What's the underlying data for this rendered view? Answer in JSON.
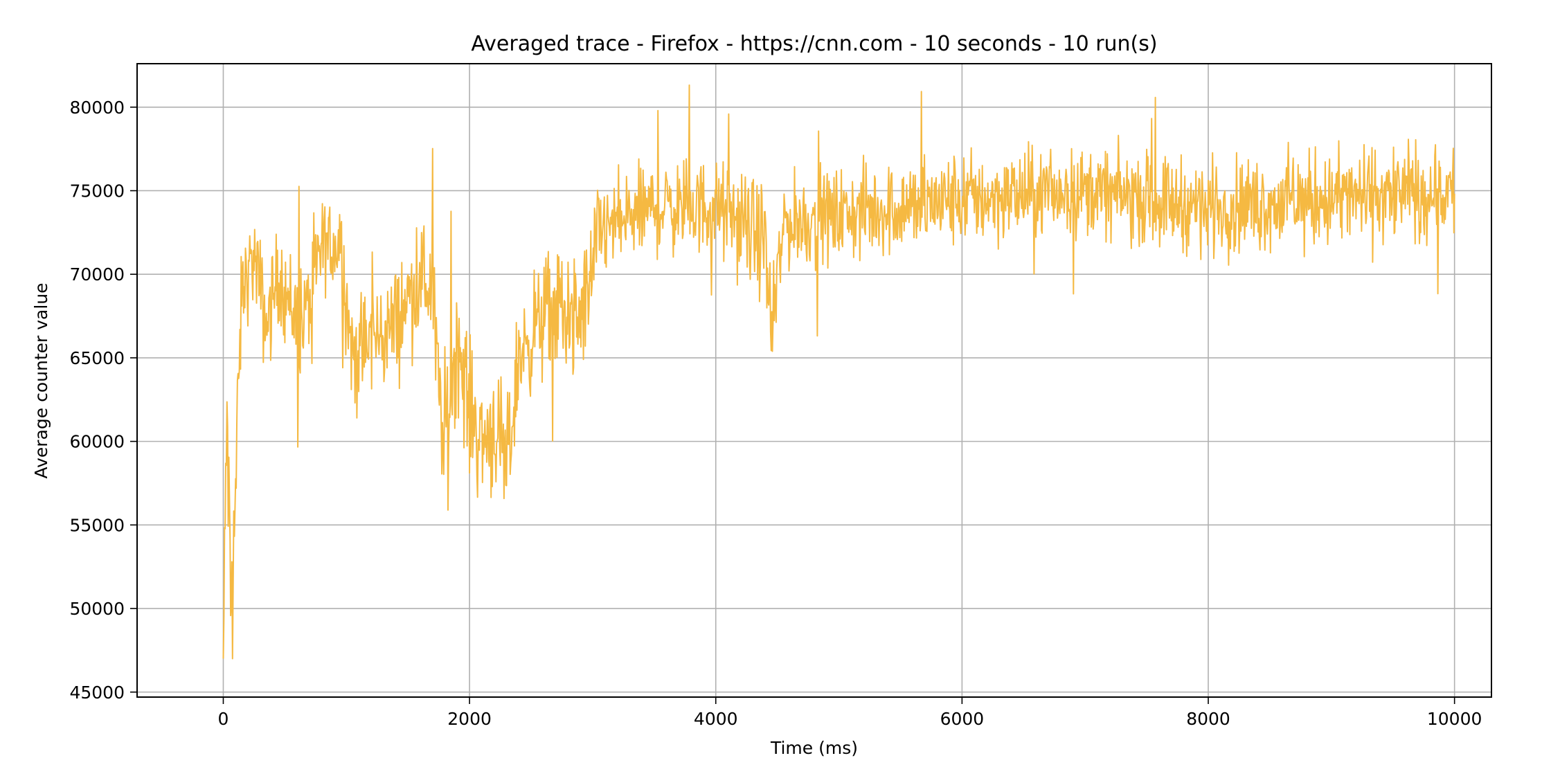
{
  "chart_data": {
    "type": "line",
    "title": "Averaged trace - Firefox - https://cnn.com - 10 seconds - 10 run(s)",
    "xlabel": "Time (ms)",
    "ylabel": "Average counter value",
    "xlim": [
      -700,
      10300
    ],
    "ylim": [
      44700,
      82600
    ],
    "xticks": [
      0,
      2000,
      4000,
      6000,
      8000,
      10000
    ],
    "xtick_labels": [
      "0",
      "2000",
      "4000",
      "6000",
      "8000",
      "10000"
    ],
    "yticks": [
      45000,
      50000,
      55000,
      60000,
      65000,
      70000,
      75000,
      80000
    ],
    "ytick_labels": [
      "45000",
      "50000",
      "55000",
      "60000",
      "65000",
      "70000",
      "75000",
      "80000"
    ],
    "grid": true,
    "legend": "none",
    "color": "#f5b942",
    "series": [
      {
        "step_ms": 5,
        "segments": [
          {
            "x": 0,
            "mean": 47000,
            "spread": 2500
          },
          {
            "x": 30,
            "mean": 62000,
            "spread": 5000
          },
          {
            "x": 60,
            "mean": 50000,
            "spread": 3000
          },
          {
            "x": 100,
            "mean": 57000,
            "spread": 4000
          },
          {
            "x": 150,
            "mean": 69000,
            "spread": 2500
          },
          {
            "x": 250,
            "mean": 71000,
            "spread": 2500
          },
          {
            "x": 350,
            "mean": 67000,
            "spread": 3000
          },
          {
            "x": 450,
            "mean": 70000,
            "spread": 2500
          },
          {
            "x": 550,
            "mean": 68000,
            "spread": 3000
          },
          {
            "x": 650,
            "mean": 67000,
            "spread": 3000
          },
          {
            "x": 800,
            "mean": 71500,
            "spread": 2500
          },
          {
            "x": 950,
            "mean": 72000,
            "spread": 2500
          },
          {
            "x": 1050,
            "mean": 65000,
            "spread": 3500
          },
          {
            "x": 1200,
            "mean": 66000,
            "spread": 3000
          },
          {
            "x": 1400,
            "mean": 67000,
            "spread": 3000
          },
          {
            "x": 1600,
            "mean": 70000,
            "spread": 3000
          },
          {
            "x": 1700,
            "mean": 69000,
            "spread": 3500
          },
          {
            "x": 1780,
            "mean": 60000,
            "spread": 3500
          },
          {
            "x": 1900,
            "mean": 66000,
            "spread": 3500
          },
          {
            "x": 2000,
            "mean": 62000,
            "spread": 3500
          },
          {
            "x": 2100,
            "mean": 60000,
            "spread": 3500
          },
          {
            "x": 2200,
            "mean": 61000,
            "spread": 3500
          },
          {
            "x": 2300,
            "mean": 58000,
            "spread": 3500
          },
          {
            "x": 2400,
            "mean": 65000,
            "spread": 3000
          },
          {
            "x": 2550,
            "mean": 67000,
            "spread": 3000
          },
          {
            "x": 2700,
            "mean": 68000,
            "spread": 3500
          },
          {
            "x": 2900,
            "mean": 67000,
            "spread": 3500
          },
          {
            "x": 3050,
            "mean": 72500,
            "spread": 2500
          },
          {
            "x": 3500,
            "mean": 74000,
            "spread": 2500
          },
          {
            "x": 4000,
            "mean": 74000,
            "spread": 2500
          },
          {
            "x": 4400,
            "mean": 72000,
            "spread": 3000
          },
          {
            "x": 4450,
            "mean": 66000,
            "spread": 2500
          },
          {
            "x": 4550,
            "mean": 73000,
            "spread": 2500
          },
          {
            "x": 5000,
            "mean": 73500,
            "spread": 2500
          },
          {
            "x": 6000,
            "mean": 74500,
            "spread": 2500
          },
          {
            "x": 7000,
            "mean": 75000,
            "spread": 2300
          },
          {
            "x": 8000,
            "mean": 74000,
            "spread": 2500
          },
          {
            "x": 9000,
            "mean": 74500,
            "spread": 2600
          },
          {
            "x": 10000,
            "mean": 75000,
            "spread": 2600
          }
        ],
        "min": 47000,
        "max": 81500
      }
    ]
  }
}
